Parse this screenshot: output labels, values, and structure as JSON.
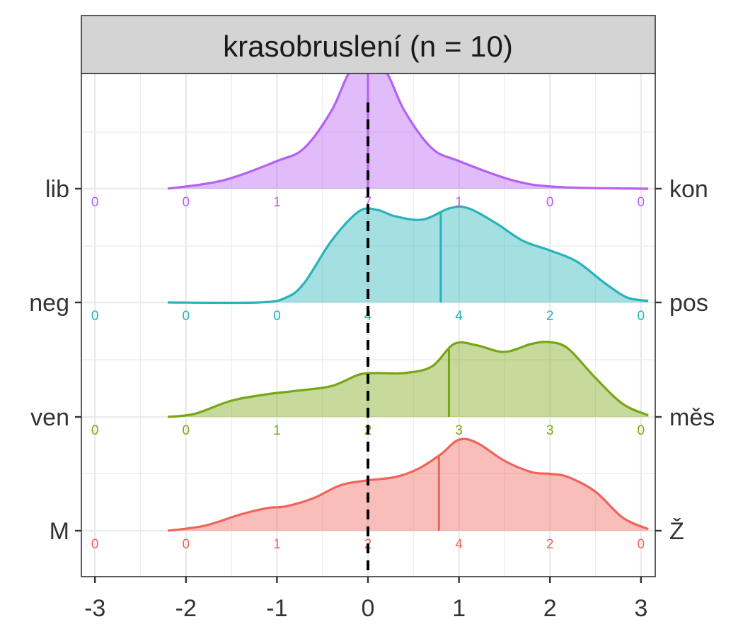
{
  "chart_data": {
    "type": "ridgeline",
    "title": "krasobruslení (n = 10)",
    "xlim": [
      -3,
      3
    ],
    "x_ticks": [
      -3,
      -2,
      -1,
      0,
      1,
      2,
      3
    ],
    "x_tick_labels": [
      "-3",
      "-2",
      "-1",
      "0",
      "1",
      "2",
      "3"
    ],
    "reference_line": {
      "x": 0,
      "style": "dashed",
      "color": "#000000"
    },
    "grid": true,
    "count_positions": [
      -3,
      -2,
      -1,
      0,
      1,
      2,
      3
    ],
    "series": [
      {
        "left_label": "M",
        "right_label": "Ž",
        "color": "#f0635b",
        "counts": [
          "0",
          "0",
          "1",
          "2",
          "4",
          "2",
          "0"
        ],
        "mean": 0.78,
        "density": [
          [
            -2.2,
            0
          ],
          [
            -1.8,
            0.03
          ],
          [
            -1.4,
            0.1
          ],
          [
            -1.1,
            0.14
          ],
          [
            -0.9,
            0.15
          ],
          [
            -0.6,
            0.2
          ],
          [
            -0.3,
            0.28
          ],
          [
            0,
            0.31
          ],
          [
            0.3,
            0.33
          ],
          [
            0.55,
            0.38
          ],
          [
            0.8,
            0.47
          ],
          [
            1.0,
            0.56
          ],
          [
            1.2,
            0.54
          ],
          [
            1.5,
            0.43
          ],
          [
            1.8,
            0.36
          ],
          [
            2.0,
            0.35
          ],
          [
            2.2,
            0.33
          ],
          [
            2.5,
            0.24
          ],
          [
            2.8,
            0.08
          ],
          [
            3.08,
            0.01
          ]
        ]
      },
      {
        "left_label": "ven",
        "right_label": "měs",
        "color": "#78a612",
        "counts": [
          "0",
          "0",
          "1",
          "2",
          "3",
          "3",
          "0"
        ],
        "mean": 0.89,
        "density": [
          [
            -2.2,
            0
          ],
          [
            -1.9,
            0.02
          ],
          [
            -1.5,
            0.1
          ],
          [
            -1.1,
            0.14
          ],
          [
            -0.8,
            0.16
          ],
          [
            -0.4,
            0.19
          ],
          [
            -0.1,
            0.26
          ],
          [
            0.1,
            0.27
          ],
          [
            0.4,
            0.27
          ],
          [
            0.7,
            0.31
          ],
          [
            0.95,
            0.45
          ],
          [
            1.2,
            0.44
          ],
          [
            1.5,
            0.4
          ],
          [
            1.8,
            0.45
          ],
          [
            2.0,
            0.46
          ],
          [
            2.2,
            0.42
          ],
          [
            2.5,
            0.24
          ],
          [
            2.8,
            0.08
          ],
          [
            3.08,
            0.01
          ]
        ]
      },
      {
        "left_label": "neg",
        "right_label": "pos",
        "color": "#26b3b9",
        "counts": [
          "0",
          "0",
          "0",
          "4",
          "4",
          "2",
          "0"
        ],
        "mean": 0.8,
        "density": [
          [
            -2.2,
            0
          ],
          [
            -1.2,
            0
          ],
          [
            -0.9,
            0.03
          ],
          [
            -0.7,
            0.12
          ],
          [
            -0.4,
            0.38
          ],
          [
            -0.1,
            0.56
          ],
          [
            0.1,
            0.57
          ],
          [
            0.3,
            0.53
          ],
          [
            0.6,
            0.51
          ],
          [
            0.9,
            0.58
          ],
          [
            1.1,
            0.58
          ],
          [
            1.4,
            0.49
          ],
          [
            1.7,
            0.38
          ],
          [
            2.0,
            0.32
          ],
          [
            2.3,
            0.25
          ],
          [
            2.6,
            0.12
          ],
          [
            2.85,
            0.03
          ],
          [
            3.08,
            0.01
          ]
        ]
      },
      {
        "left_label": "lib",
        "right_label": "kon",
        "color": "#b560f2",
        "counts": [
          "0",
          "0",
          "1",
          "7",
          "1",
          "0",
          "0"
        ],
        "mean": 0.0,
        "density": [
          [
            -2.2,
            0
          ],
          [
            -1.6,
            0.05
          ],
          [
            -1.0,
            0.17
          ],
          [
            -0.7,
            0.25
          ],
          [
            -0.4,
            0.48
          ],
          [
            -0.2,
            0.72
          ],
          [
            0,
            0.8
          ],
          [
            0.2,
            0.72
          ],
          [
            0.4,
            0.48
          ],
          [
            0.7,
            0.25
          ],
          [
            1.0,
            0.17
          ],
          [
            1.6,
            0.05
          ],
          [
            2.1,
            0.01
          ],
          [
            3.08,
            0
          ]
        ]
      }
    ]
  }
}
